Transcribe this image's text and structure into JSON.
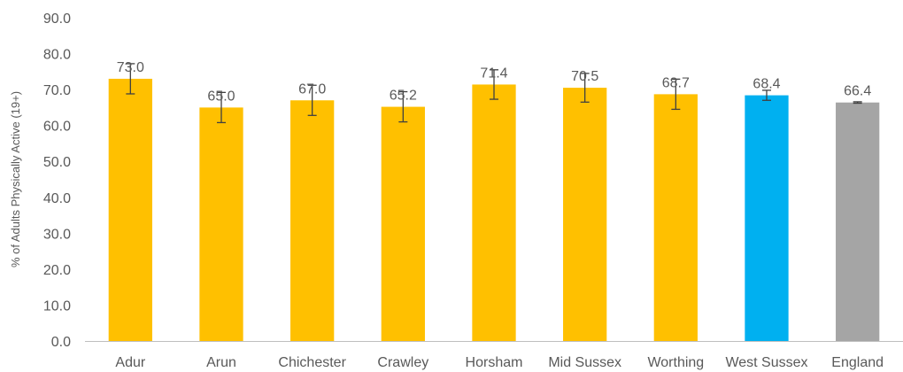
{
  "chart_data": {
    "type": "bar",
    "title": "",
    "xlabel": "",
    "ylabel": "% of Adults  Physically Active (19+)",
    "ylim": [
      0,
      90
    ],
    "y_tick_step": 10,
    "y_tick_decimals": 1,
    "grid": false,
    "legend": "none",
    "categories": [
      "Adur",
      "Arun",
      "Chichester",
      "Crawley",
      "Horsham",
      "Mid Sussex",
      "Worthing",
      "West Sussex",
      "England"
    ],
    "values": [
      73.0,
      65.0,
      67.0,
      65.2,
      71.4,
      70.5,
      68.7,
      68.4,
      66.4
    ],
    "data_labels": [
      "73.0",
      "65.0",
      "67.0",
      "65.2",
      "71.4",
      "70.5",
      "68.7",
      "68.4",
      "66.4"
    ],
    "error_low": [
      68.8,
      60.8,
      62.8,
      61.0,
      67.3,
      66.5,
      64.5,
      67.0,
      66.2
    ],
    "error_high": [
      77.2,
      69.2,
      71.2,
      69.4,
      75.5,
      74.5,
      72.9,
      69.8,
      66.6
    ],
    "colors": [
      "#FFC000",
      "#FFC000",
      "#FFC000",
      "#FFC000",
      "#FFC000",
      "#FFC000",
      "#FFC000",
      "#00B0F0",
      "#A5A5A5"
    ],
    "axis_color": "#BFBFBF",
    "error_bar_color": "#404040"
  }
}
